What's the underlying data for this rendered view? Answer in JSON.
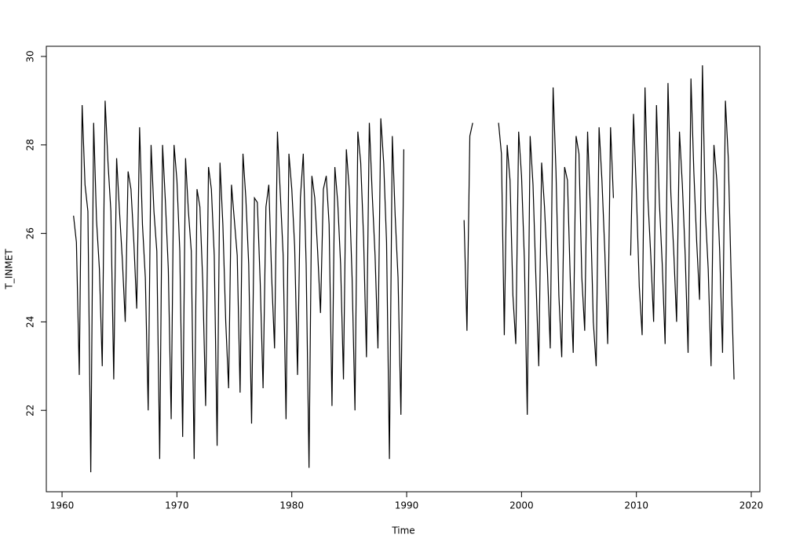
{
  "chart_data": {
    "type": "line",
    "x_label": "Time",
    "y_label": "T_INMET",
    "xlim": [
      1958.63,
      2020.75
    ],
    "ylim": [
      20.16,
      30.23
    ],
    "xticks": [
      1960,
      1970,
      1980,
      1990,
      2000,
      2010,
      2020
    ],
    "yticks": [
      22,
      24,
      26,
      28,
      30
    ],
    "color": "#000000",
    "x": [
      1961,
      1961.25,
      1961.5,
      1961.75,
      1962,
      1962.25,
      1962.5,
      1962.75,
      1963,
      1963.25,
      1963.5,
      1963.75,
      1964,
      1964.25,
      1964.5,
      1964.75,
      1965,
      1965.25,
      1965.5,
      1965.75,
      1966,
      1966.25,
      1966.5,
      1966.75,
      1967,
      1967.25,
      1967.5,
      1967.75,
      1968,
      1968.25,
      1968.5,
      1968.75,
      1969,
      1969.25,
      1969.5,
      1969.75,
      1970,
      1970.25,
      1970.5,
      1970.75,
      1971,
      1971.25,
      1971.5,
      1971.75,
      1972,
      1972.25,
      1972.5,
      1972.75,
      1973,
      1973.25,
      1973.5,
      1973.75,
      1974,
      1974.25,
      1974.5,
      1974.75,
      1975,
      1975.25,
      1975.5,
      1975.75,
      1976,
      1976.25,
      1976.5,
      1976.75,
      1977,
      1977.25,
      1977.5,
      1977.75,
      1978,
      1978.25,
      1978.5,
      1978.75,
      1979,
      1979.25,
      1979.5,
      1979.75,
      1980,
      1980.25,
      1980.5,
      1980.75,
      1981,
      1981.25,
      1981.5,
      1981.75,
      1982,
      1982.25,
      1982.5,
      1982.75,
      1983,
      1983.25,
      1983.5,
      1983.75,
      1984,
      1984.25,
      1984.5,
      1984.75,
      1985,
      1985.25,
      1985.5,
      1985.75,
      1986,
      1986.25,
      1986.5,
      1986.75,
      1987,
      1987.25,
      1987.5,
      1987.75,
      1988,
      1988.25,
      1988.5,
      1988.75,
      1989,
      1989.25,
      1989.5,
      1989.75,
      1992,
      1995,
      1995.25,
      1995.5,
      1995.75,
      1997,
      1998,
      1998.25,
      1998.5,
      1998.75,
      1999,
      1999.25,
      1999.5,
      1999.75,
      2000,
      2000.25,
      2000.5,
      2000.75,
      2001,
      2001.25,
      2001.5,
      2001.75,
      2002,
      2002.25,
      2002.5,
      2002.75,
      2003,
      2003.25,
      2003.5,
      2003.75,
      2004,
      2004.25,
      2004.5,
      2004.75,
      2005,
      2005.25,
      2005.5,
      2005.75,
      2006,
      2006.25,
      2006.5,
      2006.75,
      2007,
      2007.25,
      2007.5,
      2007.75,
      2008,
      2008.8,
      2009.5,
      2009.75,
      2010,
      2010.25,
      2010.5,
      2010.75,
      2011,
      2011.25,
      2011.5,
      2011.75,
      2012,
      2012.25,
      2012.5,
      2012.75,
      2013,
      2013.25,
      2013.5,
      2013.75,
      2014,
      2014.25,
      2014.5,
      2014.75,
      2015,
      2015.25,
      2015.5,
      2015.75,
      2016,
      2016.25,
      2016.5,
      2016.75,
      2017,
      2017.25,
      2017.5,
      2017.75,
      2018,
      2018.25,
      2018.5
    ],
    "values": [
      26.4,
      25.8,
      22.8,
      28.9,
      27.1,
      26.5,
      20.6,
      28.5,
      26.3,
      25.2,
      23.0,
      29.0,
      27.6,
      26.5,
      22.7,
      27.7,
      26.5,
      25.4,
      24.0,
      27.4,
      27.0,
      25.8,
      24.3,
      28.4,
      26.2,
      25.0,
      22.0,
      28.0,
      26.5,
      25.6,
      20.9,
      28.0,
      26.7,
      25.2,
      21.8,
      28.0,
      27.2,
      25.6,
      21.4,
      27.7,
      26.5,
      25.6,
      20.9,
      27.0,
      26.6,
      24.9,
      22.1,
      27.5,
      27.0,
      25.5,
      21.2,
      27.6,
      26.2,
      24.0,
      22.5,
      27.1,
      26.3,
      25.5,
      22.4,
      27.8,
      26.8,
      25.3,
      21.7,
      26.8,
      26.7,
      24.9,
      22.5,
      26.6,
      27.1,
      25.0,
      23.4,
      28.3,
      26.9,
      25.5,
      21.8,
      27.8,
      27.0,
      25.7,
      22.8,
      26.8,
      27.8,
      25.3,
      20.7,
      27.3,
      26.8,
      25.6,
      24.2,
      27.0,
      27.3,
      26.2,
      22.1,
      27.5,
      26.7,
      25.3,
      22.7,
      27.9,
      27.0,
      25.0,
      22.0,
      28.3,
      27.6,
      25.9,
      23.2,
      28.5,
      26.9,
      25.5,
      23.4,
      28.6,
      27.6,
      25.8,
      20.9,
      28.2,
      26.4,
      25.0,
      21.9,
      27.9,
      null,
      26.3,
      23.8,
      28.2,
      28.5,
      null,
      28.5,
      27.8,
      23.7,
      28.0,
      27.2,
      24.6,
      23.5,
      28.3,
      27.3,
      25.4,
      21.9,
      28.2,
      27.1,
      25.0,
      23.0,
      27.6,
      26.6,
      25.2,
      23.4,
      29.3,
      27.4,
      24.6,
      23.2,
      27.5,
      27.2,
      24.9,
      23.3,
      28.2,
      27.8,
      25.0,
      23.8,
      28.3,
      26.5,
      24.0,
      23.0,
      28.4,
      27.2,
      25.6,
      23.5,
      28.4,
      26.8,
      null,
      25.5,
      28.7,
      26.9,
      24.8,
      23.7,
      29.3,
      26.8,
      25.5,
      24.0,
      28.9,
      26.7,
      25.3,
      23.5,
      29.4,
      26.9,
      25.6,
      24.0,
      28.3,
      27.1,
      25.5,
      23.3,
      29.5,
      27.4,
      25.8,
      24.5,
      29.8,
      26.5,
      25.2,
      23.0,
      28.0,
      27.2,
      25.6,
      23.3,
      29.0,
      27.7,
      25.0,
      22.7
    ]
  }
}
